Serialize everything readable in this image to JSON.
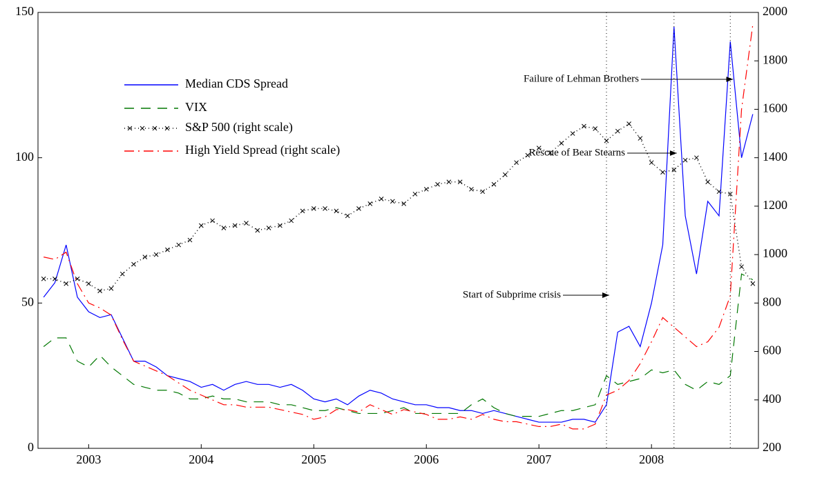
{
  "chart_data": {
    "type": "line",
    "x": [
      2002.6,
      2002.7,
      2002.8,
      2002.9,
      2003.0,
      2003.1,
      2003.2,
      2003.3,
      2003.4,
      2003.5,
      2003.6,
      2003.7,
      2003.8,
      2003.9,
      2004.0,
      2004.1,
      2004.2,
      2004.3,
      2004.4,
      2004.5,
      2004.6,
      2004.7,
      2004.8,
      2004.9,
      2005.0,
      2005.1,
      2005.2,
      2005.3,
      2005.4,
      2005.5,
      2005.6,
      2005.7,
      2005.8,
      2005.9,
      2006.0,
      2006.1,
      2006.2,
      2006.3,
      2006.4,
      2006.5,
      2006.6,
      2006.7,
      2006.8,
      2006.9,
      2007.0,
      2007.1,
      2007.2,
      2007.3,
      2007.4,
      2007.5,
      2007.6,
      2007.7,
      2007.8,
      2007.9,
      2008.0,
      2008.1,
      2008.2,
      2008.3,
      2008.4,
      2008.5,
      2008.6,
      2008.7,
      2008.8,
      2008.9
    ],
    "series": [
      {
        "name": "Median CDS Spread",
        "color": "#0000ff",
        "dash": "solid",
        "values": [
          52,
          57,
          70,
          52,
          47,
          45,
          46,
          38,
          30,
          30,
          28,
          25,
          24,
          23,
          21,
          22,
          20,
          22,
          23,
          22,
          22,
          21,
          22,
          20,
          17,
          16,
          17,
          15,
          18,
          20,
          19,
          17,
          16,
          15,
          15,
          14,
          14,
          13,
          13,
          12,
          13,
          12,
          11,
          10,
          9,
          9,
          9,
          10,
          10,
          9,
          15,
          40,
          42,
          35,
          50,
          70,
          145,
          80,
          60,
          85,
          80,
          140,
          100,
          115
        ]
      },
      {
        "name": "VIX",
        "color": "#007700",
        "dash": "dash",
        "values": [
          35,
          38,
          38,
          30,
          28,
          32,
          28,
          25,
          22,
          21,
          20,
          20,
          19,
          17,
          17,
          18,
          17,
          17,
          16,
          16,
          16,
          15,
          15,
          14,
          13,
          13,
          14,
          13,
          12,
          12,
          12,
          13,
          14,
          12,
          12,
          12,
          12,
          12,
          15,
          17,
          14,
          12,
          11,
          11,
          11,
          12,
          13,
          13,
          14,
          15,
          25,
          22,
          23,
          24,
          27,
          26,
          27,
          22,
          20,
          23,
          22,
          25,
          60,
          58
        ]
      },
      {
        "name": "S&P 500 (right scale)",
        "color": "#000000",
        "dash": "dot",
        "axis": "y2",
        "values": [
          900,
          900,
          880,
          900,
          880,
          850,
          860,
          920,
          960,
          990,
          1000,
          1020,
          1040,
          1060,
          1120,
          1140,
          1110,
          1120,
          1130,
          1100,
          1110,
          1120,
          1140,
          1180,
          1190,
          1190,
          1180,
          1160,
          1190,
          1210,
          1230,
          1220,
          1210,
          1250,
          1270,
          1290,
          1300,
          1300,
          1270,
          1260,
          1290,
          1330,
          1380,
          1410,
          1440,
          1420,
          1460,
          1500,
          1530,
          1520,
          1470,
          1510,
          1540,
          1480,
          1380,
          1340,
          1350,
          1390,
          1400,
          1300,
          1260,
          1250,
          950,
          880
        ]
      },
      {
        "name": "High Yield Spread (right scale)",
        "color": "#ff0000",
        "dash": "dashdot",
        "axis": "y2",
        "values": [
          990,
          980,
          1010,
          880,
          800,
          780,
          750,
          650,
          560,
          540,
          520,
          500,
          470,
          440,
          420,
          400,
          380,
          380,
          370,
          370,
          370,
          360,
          350,
          340,
          320,
          330,
          360,
          360,
          350,
          380,
          360,
          340,
          360,
          350,
          340,
          320,
          320,
          330,
          320,
          340,
          320,
          310,
          310,
          300,
          290,
          290,
          300,
          280,
          280,
          300,
          420,
          440,
          480,
          550,
          640,
          740,
          700,
          660,
          620,
          640,
          700,
          830,
          1600,
          1950
        ]
      }
    ],
    "events": [
      {
        "label": "Start of Subprime crisis",
        "x": 2007.6
      },
      {
        "label": "Rescue of Bear Stearns",
        "x": 2008.2
      },
      {
        "label": "Failure of Lehman Brothers",
        "x": 2008.7
      }
    ],
    "xlim": [
      2002.55,
      2008.95
    ],
    "xticks": [
      2003,
      2004,
      2005,
      2006,
      2007,
      2008
    ],
    "ylim": [
      0,
      150
    ],
    "yticks": [
      0,
      50,
      100,
      150
    ],
    "y2lim": [
      200,
      2000
    ],
    "y2ticks": [
      200,
      400,
      600,
      800,
      1000,
      1200,
      1400,
      1600,
      1800,
      2000
    ]
  }
}
